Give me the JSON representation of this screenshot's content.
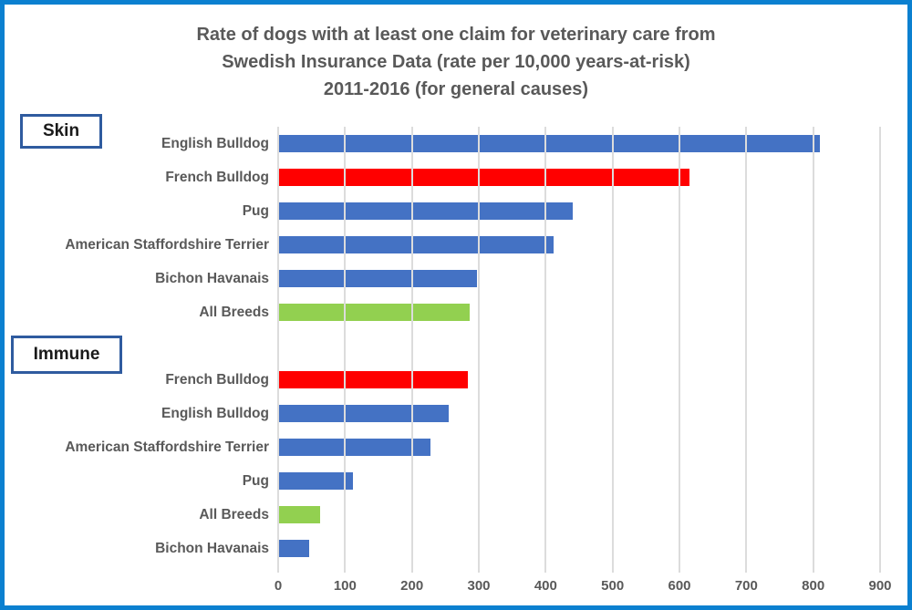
{
  "colors": {
    "frame_border": "#0b80d0",
    "group_box_border": "#2f5b9f",
    "text_gray": "#595959",
    "gridline": "#dcdcdc",
    "bar_blue": "#4472C4",
    "bar_red": "#FF0000",
    "bar_green": "#92D050"
  },
  "chart_data": {
    "type": "bar",
    "orientation": "horizontal",
    "title_lines": [
      "Rate of dogs with at least one claim for veterinary care from",
      "Swedish Insurance Data (rate per 10,000 years-at-risk)",
      "2011-2016 (for general causes)"
    ],
    "xlabel": "",
    "ylabel": "",
    "xlim": [
      0,
      900
    ],
    "x_ticks": [
      0,
      100,
      200,
      300,
      400,
      500,
      600,
      700,
      800,
      900
    ],
    "grid": true,
    "legend": "none",
    "groups": [
      {
        "label": "Skin",
        "bars": [
          {
            "label": "English Bulldog",
            "value": 810,
            "color": "#4472C4"
          },
          {
            "label": "French Bulldog",
            "value": 615,
            "color": "#FF0000"
          },
          {
            "label": "Pug",
            "value": 440,
            "color": "#4472C4"
          },
          {
            "label": "American Staffordshire Terrier",
            "value": 412,
            "color": "#4472C4"
          },
          {
            "label": "Bichon Havanais",
            "value": 297,
            "color": "#4472C4"
          },
          {
            "label": "All Breeds",
            "value": 287,
            "color": "#92D050"
          }
        ]
      },
      {
        "label": "Immune",
        "bars": [
          {
            "label": "French Bulldog",
            "value": 284,
            "color": "#FF0000"
          },
          {
            "label": "English Bulldog",
            "value": 255,
            "color": "#4472C4"
          },
          {
            "label": "American Staffordshire Terrier",
            "value": 228,
            "color": "#4472C4"
          },
          {
            "label": "Pug",
            "value": 112,
            "color": "#4472C4"
          },
          {
            "label": "All Breeds",
            "value": 63,
            "color": "#92D050"
          },
          {
            "label": "Bichon Havanais",
            "value": 46,
            "color": "#4472C4"
          }
        ]
      }
    ]
  }
}
